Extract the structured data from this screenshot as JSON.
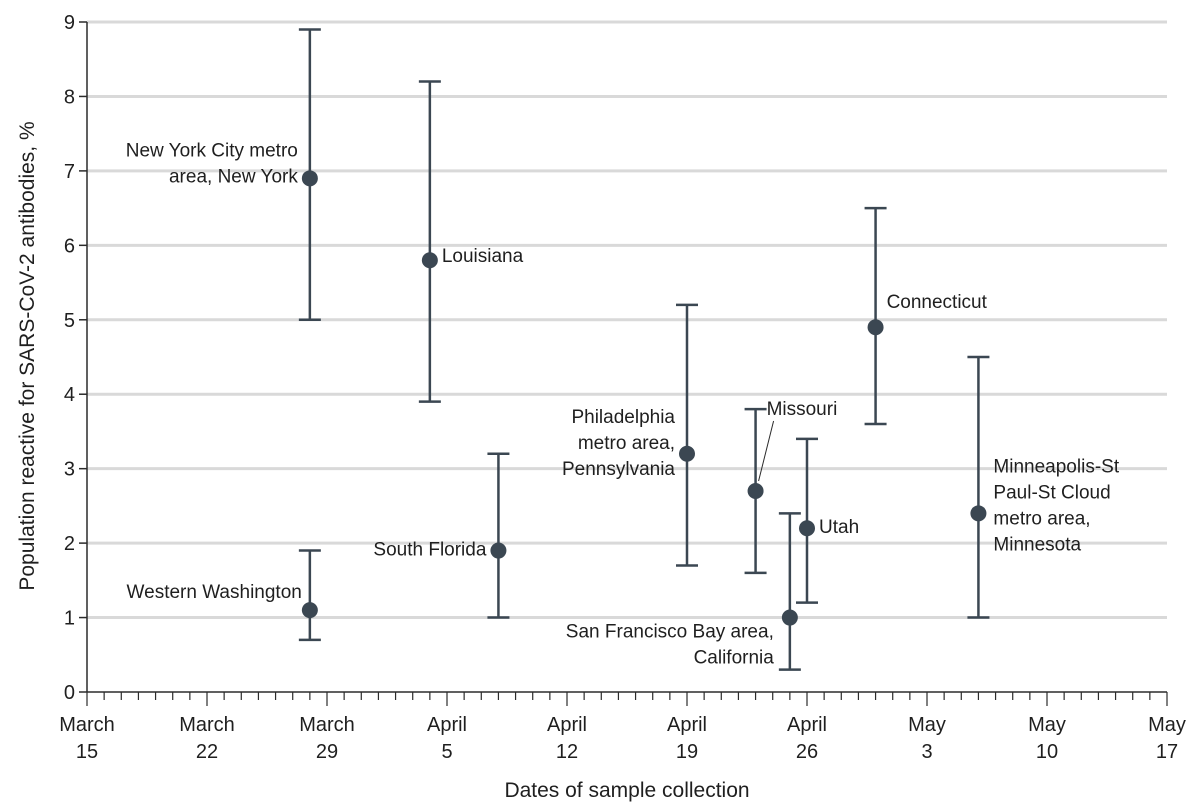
{
  "chart_data": {
    "type": "scatter",
    "xlabel": "Dates of sample collection",
    "ylabel": "Population reactive for SARS-CoV-2 antibodies, %",
    "x_range": [
      "2020-03-15",
      "2020-05-17"
    ],
    "ylim": [
      0,
      9
    ],
    "y_ticks": [
      "0",
      "1",
      "2",
      "3",
      "4",
      "5",
      "6",
      "7",
      "8",
      "9"
    ],
    "x_ticks": [
      {
        "date": "2020-03-15",
        "month": "March",
        "day": "15"
      },
      {
        "date": "2020-03-22",
        "month": "March",
        "day": "22"
      },
      {
        "date": "2020-03-29",
        "month": "March",
        "day": "29"
      },
      {
        "date": "2020-04-05",
        "month": "April",
        "day": "5"
      },
      {
        "date": "2020-04-12",
        "month": "April",
        "day": "12"
      },
      {
        "date": "2020-04-19",
        "month": "April",
        "day": "19"
      },
      {
        "date": "2020-04-26",
        "month": "April",
        "day": "26"
      },
      {
        "date": "2020-05-03",
        "month": "May",
        "day": "3"
      },
      {
        "date": "2020-05-10",
        "month": "May",
        "day": "10"
      },
      {
        "date": "2020-05-17",
        "month": "May",
        "day": "17"
      }
    ],
    "grid": "horizontal",
    "colors": {
      "marker": "#3b4752",
      "grid": "#d9d9d9",
      "axis": "#2b2b2b"
    },
    "points": [
      {
        "label_lines": [
          "New York City metro",
          "area, New York"
        ],
        "date": "2020-03-28",
        "value": 6.9,
        "ci_low": 5.0,
        "ci_high": 8.9
      },
      {
        "label_lines": [
          "Western Washington"
        ],
        "date": "2020-03-28",
        "value": 1.1,
        "ci_low": 0.7,
        "ci_high": 1.9
      },
      {
        "label_lines": [
          "Louisiana"
        ],
        "date": "2020-04-04",
        "value": 5.8,
        "ci_low": 3.9,
        "ci_high": 8.2
      },
      {
        "label_lines": [
          "South Florida"
        ],
        "date": "2020-04-08",
        "value": 1.9,
        "ci_low": 1.0,
        "ci_high": 3.2
      },
      {
        "label_lines": [
          "Philadelphia",
          "metro area,",
          "Pennsylvania"
        ],
        "date": "2020-04-19",
        "value": 3.2,
        "ci_low": 1.7,
        "ci_high": 5.2
      },
      {
        "label_lines": [
          "Missouri"
        ],
        "date": "2020-04-23",
        "value": 2.7,
        "ci_low": 1.6,
        "ci_high": 3.8
      },
      {
        "label_lines": [
          "San Francisco Bay area,",
          "California"
        ],
        "date": "2020-04-25",
        "value": 1.0,
        "ci_low": 0.3,
        "ci_high": 2.4
      },
      {
        "label_lines": [
          "Utah"
        ],
        "date": "2020-04-26",
        "value": 2.2,
        "ci_low": 1.2,
        "ci_high": 3.4
      },
      {
        "label_lines": [
          "Connecticut"
        ],
        "date": "2020-04-30",
        "value": 4.9,
        "ci_low": 3.6,
        "ci_high": 6.5
      },
      {
        "label_lines": [
          "Minneapolis-St",
          "Paul-St Cloud",
          "metro area,",
          "Minnesota"
        ],
        "date": "2020-05-06",
        "value": 2.4,
        "ci_low": 1.0,
        "ci_high": 4.5
      }
    ]
  }
}
